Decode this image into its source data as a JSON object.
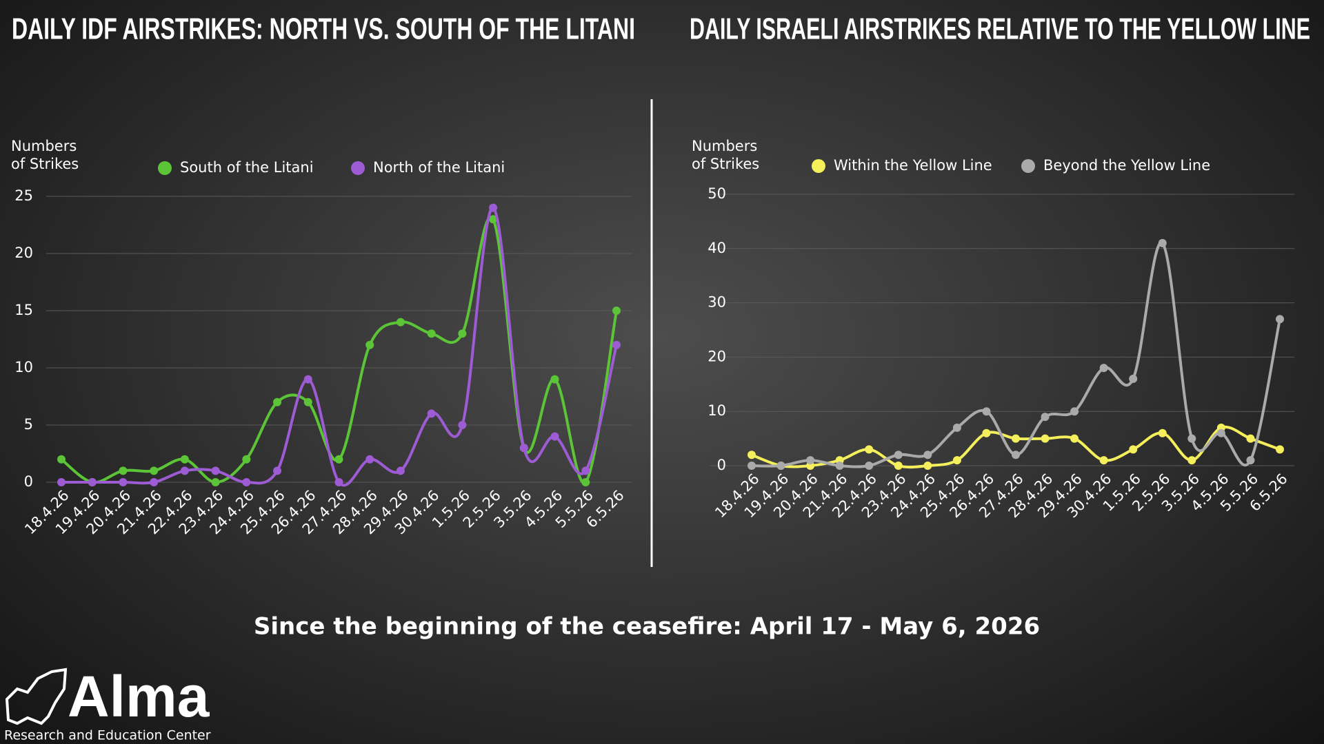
{
  "chart_data": [
    {
      "type": "line",
      "title": "DAILY IDF AIRSTRIKES: NORTH VS. SOUTH OF THE LITANI",
      "y_label": "Numbers of Strikes",
      "categories": [
        "18.4.26",
        "19.4.26",
        "20.4.26",
        "21.4.26",
        "22.4.26",
        "23.4.26",
        "24.4.26",
        "25.4.26",
        "26.4.26",
        "27.4.26",
        "28.4.26",
        "29.4.26",
        "30.4.26",
        "1.5.26",
        "2.5.26",
        "3.5.26",
        "4.5.26",
        "5.5.26",
        "6.5.26"
      ],
      "series": [
        {
          "name": "South of the Litani",
          "color": "#5cc437",
          "values": [
            2,
            0,
            1,
            1,
            2,
            0,
            2,
            7,
            7,
            2,
            12,
            14,
            13,
            13,
            23,
            3,
            9,
            0,
            15
          ]
        },
        {
          "name": "North of the Litani",
          "color": "#9d5bd4",
          "values": [
            0,
            0,
            0,
            0,
            1,
            1,
            0,
            1,
            9,
            0,
            2,
            1,
            6,
            5,
            24,
            3,
            4,
            1,
            12
          ]
        }
      ],
      "ylim": [
        0,
        25
      ],
      "yticks": [
        0,
        5,
        10,
        15,
        20,
        25
      ],
      "grid": true
    },
    {
      "type": "line",
      "title": "DAILY ISRAELI AIRSTRIKES RELATIVE TO THE YELLOW LINE",
      "y_label": "Numbers of Strikes",
      "categories": [
        "18.4.26",
        "19.4.26",
        "20.4.26",
        "21.4.26",
        "22.4.26",
        "23.4.26",
        "24.4.26",
        "25.4.26",
        "26.4.26",
        "27.4.26",
        "28.4.26",
        "29.4.26",
        "30.4.26",
        "1.5.26",
        "2.5.26",
        "3.5.26",
        "4.5.26",
        "5.5.26",
        "6.5.26"
      ],
      "series": [
        {
          "name": "Within the Yellow Line",
          "color": "#f4ef5a",
          "values": [
            2,
            0,
            0,
            1,
            3,
            0,
            0,
            1,
            6,
            5,
            5,
            5,
            1,
            3,
            6,
            1,
            7,
            5,
            3
          ]
        },
        {
          "name": "Beyond the Yellow Line",
          "color": "#aaaaaa",
          "values": [
            0,
            0,
            1,
            0,
            0,
            2,
            2,
            7,
            10,
            2,
            9,
            10,
            18,
            16,
            41,
            5,
            6,
            1,
            27
          ]
        }
      ],
      "ylim": [
        0,
        50
      ],
      "yticks": [
        0,
        10,
        20,
        30,
        40,
        50
      ],
      "grid": true
    }
  ],
  "subtitle": "Since the beginning of the ceasefire: April 17 - May 6, 2026",
  "logo": {
    "name": "Alma",
    "tagline": "Research and Education Center"
  }
}
